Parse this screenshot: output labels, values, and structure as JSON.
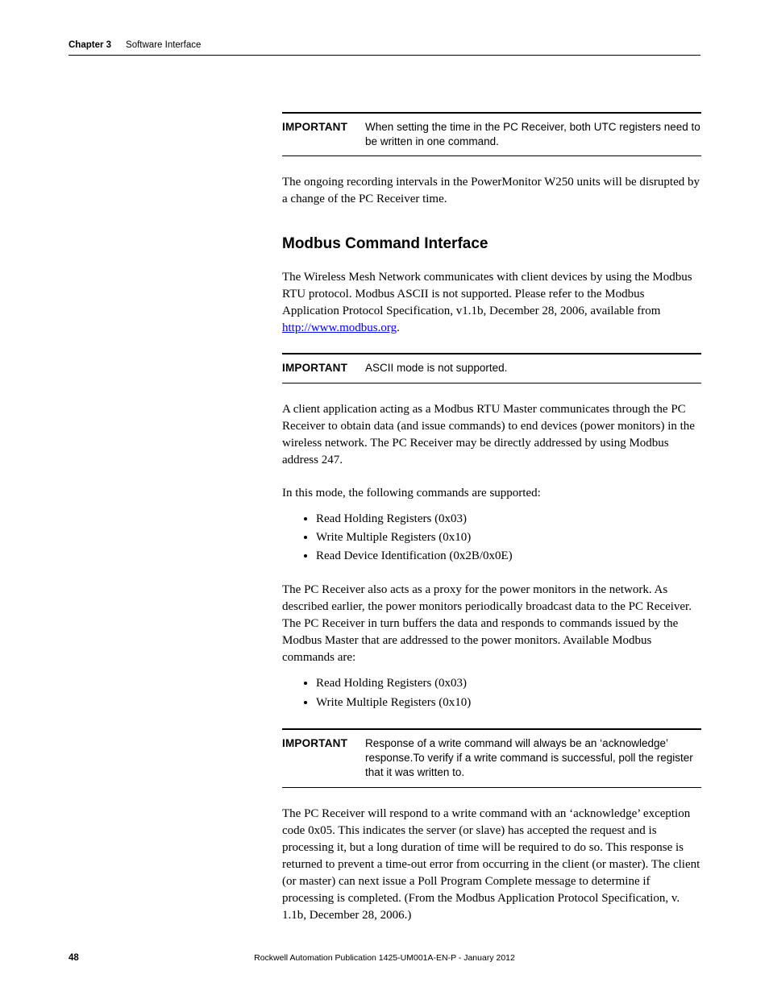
{
  "header": {
    "chapter_label": "Chapter 3",
    "chapter_title": "Software Interface"
  },
  "callout1": {
    "label": "IMPORTANT",
    "text": "When setting the time in the PC Receiver, both UTC registers need to be written in one command."
  },
  "p1": "The ongoing recording intervals in the PowerMonitor W250 units will be disrupted by a change of the PC Receiver time.",
  "h2": "Modbus Command Interface",
  "p2_a": "The Wireless Mesh Network communicates with client devices by using the Modbus RTU protocol. Modbus ASCII is not supported. Please refer to the Modbus Application Protocol Specification, v1.1b, December 28, 2006, available from ",
  "p2_link": "http://www.modbus.org",
  "p2_b": ".",
  "callout2": {
    "label": "IMPORTANT",
    "text": "ASCII mode is not supported."
  },
  "p3": "A client application acting as a Modbus RTU Master communicates through the PC Receiver to obtain data (and issue commands) to end devices (power monitors) in the wireless network. The PC Receiver may be directly addressed by using Modbus address 247.",
  "p4": "In this mode, the following commands are supported:",
  "list1": [
    "Read Holding Registers (0x03)",
    "Write Multiple Registers (0x10)",
    "Read Device Identification (0x2B/0x0E)"
  ],
  "p5": "The PC Receiver also acts as a proxy for the power monitors in the network. As described earlier, the power monitors periodically broadcast data to the PC Receiver. The PC Receiver in turn buffers the data and responds to commands issued by the Modbus Master that are addressed to the power monitors. Available Modbus commands are:",
  "list2": [
    "Read Holding Registers (0x03)",
    "Write Multiple Registers (0x10)"
  ],
  "callout3": {
    "label": "IMPORTANT",
    "text": "Response of a write command will always be an ‘acknowledge’ response.To verify if a write command is successful, poll the register that it was written to."
  },
  "p6": "The PC Receiver will respond to a write command with an ‘acknowledge’ exception code 0x05. This indicates the server (or slave) has accepted the request and is processing it, but a long duration of time will be required to do so. This response is returned to prevent a time-out error from occurring in the client (or master). The client (or master) can next issue a Poll Program Complete message to determine if processing is completed. (From the Modbus Application Protocol Specification, v. 1.1b, December 28, 2006.)",
  "footer": {
    "page_num": "48",
    "pub": "Rockwell Automation Publication 1425-UM001A-EN-P - January 2012"
  }
}
